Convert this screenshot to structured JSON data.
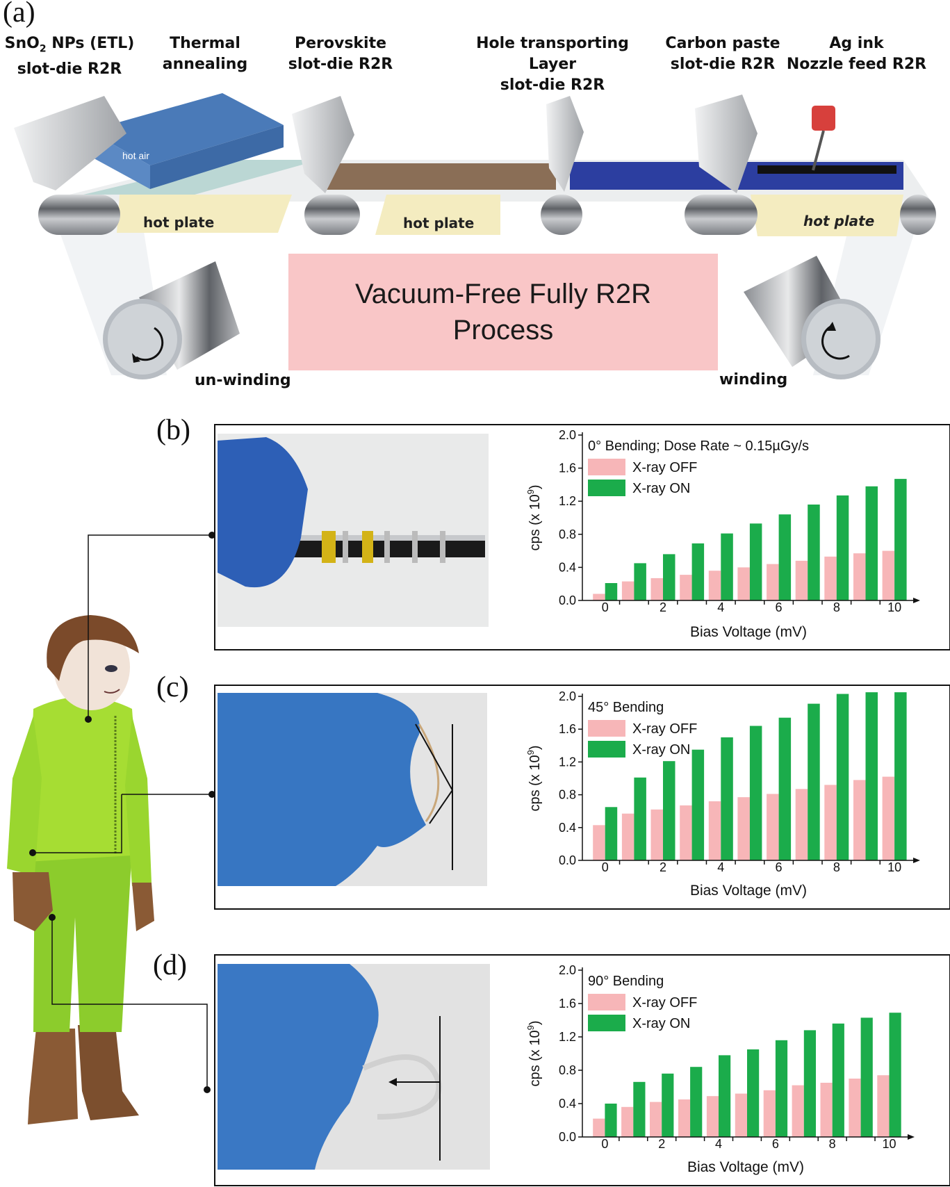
{
  "panel_a": {
    "letter": "(a)",
    "stages": [
      {
        "line1": "SnO",
        "sub": "2",
        "line1_rest": " NPs (ETL)",
        "line2": "slot-die R2R"
      },
      {
        "line1": "Thermal",
        "line2": "annealing"
      },
      {
        "line1": "Perovskite",
        "line2": "slot-die R2R"
      },
      {
        "line1": "Hole transporting",
        "line2": "Layer",
        "line3": "slot-die R2R"
      },
      {
        "line1": "Carbon paste",
        "line2": "slot-die R2R"
      },
      {
        "line1": "Ag ink",
        "line2": "Nozzle feed R2R"
      }
    ],
    "hot_air": "hot air",
    "hot_plates": [
      "hot plate",
      "hot plate",
      "hot plate"
    ],
    "banner_line1": "Vacuum-Free Fully R2R",
    "banner_line2": "Process",
    "unwinding": "un-winding",
    "winding": "winding",
    "colors": {
      "banner": "#f9c6c7",
      "hot_plate": "#f4ecc0",
      "hot_air_box": "#4a7ab8",
      "perovskite": "#8a6e56",
      "htl": "#2c3ea0",
      "roller": "#a9acb0"
    }
  },
  "letters": {
    "b": "(b)",
    "c": "(c)",
    "d": "(d)"
  },
  "chart_data": [
    {
      "type": "bar",
      "panel": "(b)",
      "annotation": "0° Bending; Dose Rate ~ 0.15µGy/s",
      "annotation_sup": "o",
      "xlabel": "Bias Voltage (mV)",
      "ylabel": "cps (x 10",
      "ylabel_sup": "9",
      "x": [
        0,
        1,
        2,
        3,
        4,
        5,
        6,
        7,
        8,
        9,
        10
      ],
      "xticks": [
        "0",
        "2",
        "4",
        "6",
        "8",
        "10"
      ],
      "yticks": [
        "0.0",
        "0.4",
        "0.8",
        "1.2",
        "1.6",
        "2.0"
      ],
      "ylim": [
        0,
        2.0
      ],
      "series": [
        {
          "name": "X-ray OFF",
          "color": "#f7b6b8",
          "values": [
            0.08,
            0.23,
            0.27,
            0.31,
            0.36,
            0.4,
            0.44,
            0.48,
            0.53,
            0.57,
            0.6
          ]
        },
        {
          "name": "X-ray ON",
          "color": "#1bac4b",
          "values": [
            0.21,
            0.45,
            0.56,
            0.69,
            0.81,
            0.93,
            1.04,
            1.16,
            1.27,
            1.38,
            1.47
          ]
        }
      ]
    },
    {
      "type": "bar",
      "panel": "(c)",
      "annotation": "45° Bending",
      "xlabel": "Bias Voltage (mV)",
      "ylabel": "cps (x 10",
      "ylabel_sup": "9",
      "x": [
        0,
        1,
        2,
        3,
        4,
        5,
        6,
        7,
        8,
        9,
        10
      ],
      "xticks": [
        "0",
        "2",
        "4",
        "6",
        "8",
        "10"
      ],
      "yticks": [
        "0.0",
        "0.4",
        "0.8",
        "1.2",
        "1.6",
        "2.0"
      ],
      "ylim": [
        0,
        2.0
      ],
      "series": [
        {
          "name": "X-ray OFF",
          "color": "#f7b6b8",
          "values": [
            0.43,
            0.57,
            0.62,
            0.67,
            0.72,
            0.77,
            0.81,
            0.87,
            0.92,
            0.98,
            1.02
          ]
        },
        {
          "name": "X-ray ON",
          "color": "#1bac4b",
          "values": [
            0.65,
            1.01,
            1.21,
            1.35,
            1.5,
            1.64,
            1.74,
            1.91,
            2.03,
            2.13,
            2.2
          ]
        }
      ]
    },
    {
      "type": "bar",
      "panel": "(d)",
      "annotation": "90° Bending",
      "xlabel": "Bias Voltage (mV)",
      "ylabel": "cps (x 10",
      "ylabel_sup": "9",
      "x": [
        0,
        1,
        2,
        3,
        4,
        5,
        6,
        7,
        8,
        9,
        10
      ],
      "xticks": [
        "0",
        "2",
        "4",
        "6",
        "8",
        "10"
      ],
      "yticks": [
        "0.0",
        "0.4",
        "0.8",
        "1.2",
        "1.6",
        "2.0"
      ],
      "ylim": [
        0,
        2.0
      ],
      "series": [
        {
          "name": "X-ray OFF",
          "color": "#f7b6b8",
          "values": [
            0.22,
            0.36,
            0.42,
            0.45,
            0.49,
            0.52,
            0.56,
            0.62,
            0.65,
            0.7,
            0.74
          ]
        },
        {
          "name": "X-ray ON",
          "color": "#1bac4b",
          "values": [
            0.4,
            0.66,
            0.76,
            0.84,
            0.98,
            1.05,
            1.16,
            1.28,
            1.36,
            1.43,
            1.49
          ]
        }
      ]
    }
  ]
}
